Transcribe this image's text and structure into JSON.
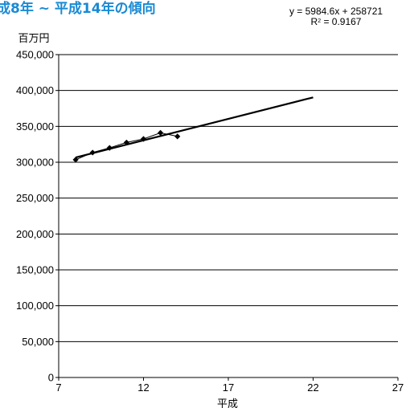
{
  "chart_data": {
    "type": "scatter",
    "title": "成8年 ~ 平成14年の傾向",
    "ylabel": "百万円",
    "xlabel": "平成",
    "xlim": [
      7,
      27
    ],
    "ylim": [
      0,
      450000
    ],
    "xticks": [
      7,
      12,
      17,
      22,
      27
    ],
    "yticks": [
      0,
      50000,
      100000,
      150000,
      200000,
      250000,
      300000,
      350000,
      400000,
      450000
    ],
    "ytick_labels": [
      "0",
      "50,000",
      "100,000",
      "150,000",
      "200,000",
      "250,000",
      "300,000",
      "350,000",
      "400,000",
      "450,000"
    ],
    "grid": "horizontal",
    "series": [
      {
        "x": [
          8,
          9,
          10,
          11,
          12,
          13,
          14
        ],
        "y": [
          303500,
          313500,
          320000,
          327500,
          332500,
          341000,
          336000
        ]
      }
    ],
    "trendline": {
      "equation": "y = 5984.6x + 258721",
      "r2_label": "= 0.9167",
      "r_symbol": "R",
      "slope": 5984.6,
      "intercept": 258721,
      "x_start": 8,
      "x_end": 22
    }
  }
}
